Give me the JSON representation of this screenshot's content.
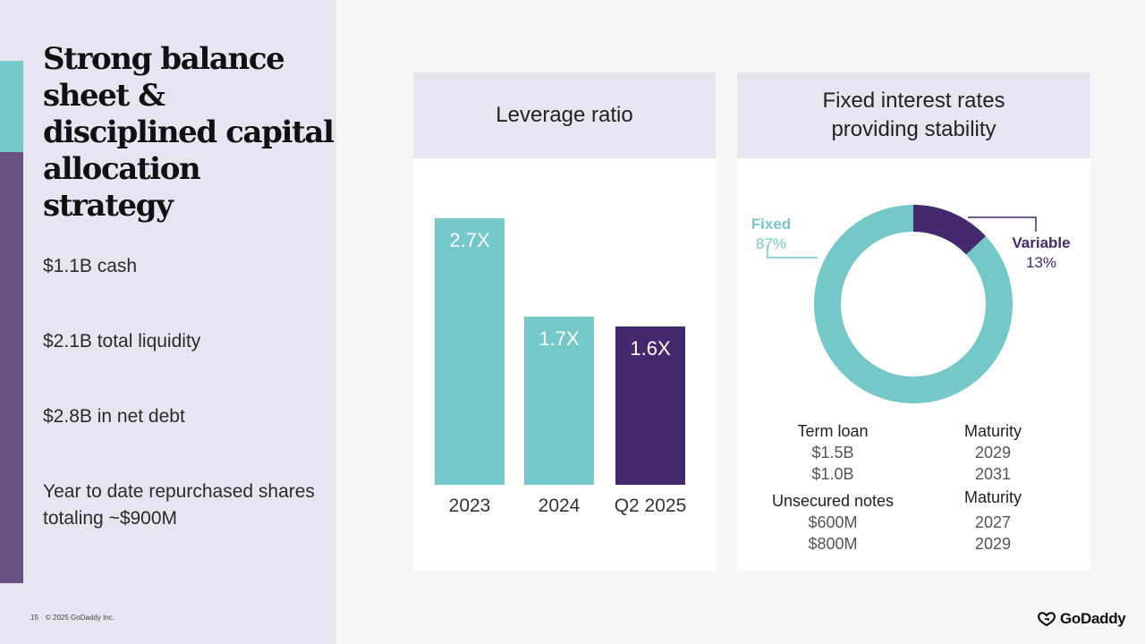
{
  "title": "Strong balance sheet & disciplined capital allocation strategy",
  "stats": [
    "$1.1B cash",
    "$2.1B total liquidity",
    "$2.8B in net debt",
    "Year to date repurchased shares totaling ~$900M"
  ],
  "footer": {
    "page": "15",
    "copyright": "© 2025 GoDaddy Inc."
  },
  "logo": {
    "text": "GoDaddy",
    "icon": "godaddy-logo-icon"
  },
  "colors": {
    "teal": "#74c8c8",
    "purple": "#45296f",
    "panel": "#e8e4f2"
  },
  "leverage_card": {
    "title": "Leverage ratio",
    "bars": [
      {
        "category": "2023",
        "label": "2.7X",
        "value": 2.7,
        "color": "#74c8c8"
      },
      {
        "category": "2024",
        "label": "1.7X",
        "value": 1.7,
        "color": "#74c8c8"
      },
      {
        "category": "Q2 2025",
        "label": "1.6X",
        "value": 1.6,
        "color": "#45296f"
      }
    ]
  },
  "rates_card": {
    "title": "Fixed interest rates providing stability",
    "fixed": {
      "name": "Fixed",
      "pct": "87%",
      "value": 87
    },
    "variable": {
      "name": "Variable",
      "pct": "13%",
      "value": 13
    },
    "term_loan": {
      "header": "Term loan",
      "amounts": [
        "$1.5B",
        "$1.0B"
      ],
      "maturity_header": "Maturity",
      "maturities": [
        "2029",
        "2031"
      ]
    },
    "unsecured": {
      "header": "Unsecured notes",
      "amounts": [
        "$600M",
        "$800M"
      ],
      "maturity_header": "Maturity",
      "maturities": [
        "2027",
        "2029"
      ]
    }
  },
  "chart_data": [
    {
      "type": "bar",
      "title": "Leverage ratio",
      "categories": [
        "2023",
        "2024",
        "Q2 2025"
      ],
      "values": [
        2.7,
        1.7,
        1.6
      ],
      "data_labels": [
        "2.7X",
        "1.7X",
        "1.6X"
      ],
      "xlabel": "",
      "ylabel": "",
      "ylim": [
        0,
        2.7
      ]
    },
    {
      "type": "pie",
      "title": "Fixed interest rates providing stability",
      "labels": [
        "Fixed",
        "Variable"
      ],
      "values": [
        87,
        13
      ],
      "data_labels": [
        "87%",
        "13%"
      ]
    }
  ]
}
